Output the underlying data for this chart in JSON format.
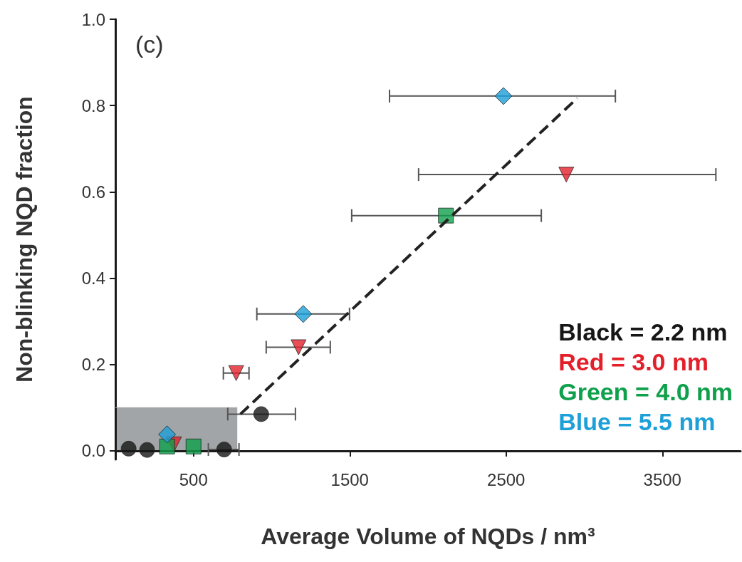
{
  "chart_data": {
    "type": "scatter",
    "xlabel": "Average Volume of NQDs / nm³",
    "ylabel": "Non-blinking NQD fraction",
    "annotations": [
      "(c)"
    ],
    "xlim": [
      0,
      4000
    ],
    "xticks": [
      500,
      {
        "value": 1500,
        "label": "1500"
      },
      {
        "value": 2500,
        "label": "2500"
      },
      {
        "value": 3500,
        "label": "3500"
      }
    ],
    "ylim": [
      -0.02,
      1.0
    ],
    "yticks": [
      {
        "value": 0,
        "label": "0.0"
      },
      0.2,
      0.4,
      0.6,
      0.8,
      {
        "value": 1,
        "label": "1.0"
      }
    ],
    "legend": "bottom right",
    "series": [
      {
        "type": "area",
        "color": "#a2a5a7",
        "x": [
          0,
          780
        ],
        "values": [
          0.1,
          0.1
        ]
      },
      {
        "name": "Black = 2.2 nm",
        "color": "#161616",
        "marker": "circle",
        "x": [
          85,
          203,
          696,
          933
        ],
        "values": [
          0.005,
          0.002,
          0.003,
          0.085
        ],
        "xerrors": [
          null,
          null,
          [
            595,
            791
          ],
          [
            719,
            1152
          ]
        ]
      },
      {
        "name": "Red = 3.0 nm",
        "color": "#e3202a",
        "marker": "triangle",
        "x": [
          375,
          773,
          1172,
          2885
        ],
        "values": [
          0.015,
          0.18,
          0.24,
          0.64
        ],
        "xerrors": [
          null,
          [
            691,
            855
          ],
          [
            965,
            1375
          ],
          [
            1940,
            3842
          ]
        ]
      },
      {
        "name": "Green = 4.0 nm",
        "color": "#0fa04b",
        "marker": "square",
        "x": [
          331,
          500,
          2115
        ],
        "values": [
          0.01,
          0.01,
          0.545
        ],
        "xerrors": [
          null,
          null,
          [
            1512,
            2725
          ]
        ]
      },
      {
        "name": "Blue = 5.5 nm",
        "color": "#1d9fd8",
        "marker": "diamond",
        "x": [
          331,
          1202,
          2483
        ],
        "values": [
          0.038,
          0.317,
          0.822
        ],
        "xerrors": [
          null,
          [
            905,
            1498
          ],
          [
            1754,
            3199
          ]
        ]
      },
      {
        "type": "line",
        "color": "#222222",
        "line_style": "dashed",
        "marker": "none",
        "x": [
          800,
          2955
        ],
        "values": [
          0.085,
          0.817
        ]
      }
    ]
  }
}
